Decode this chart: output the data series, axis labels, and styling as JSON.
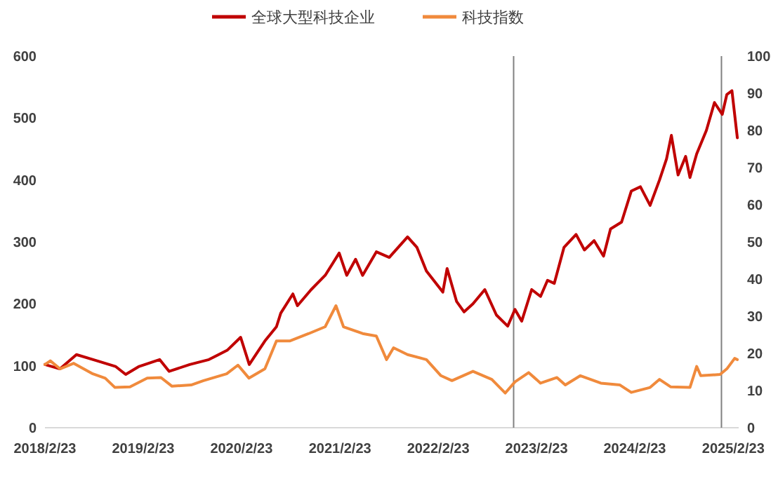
{
  "chart_data": {
    "type": "line",
    "legend": "top",
    "grid": false,
    "marker": "none",
    "line_style": "solid",
    "xlim": [
      "2018-02-23",
      "2025-03-15"
    ],
    "xticks": [
      {
        "value": "2018-02-23",
        "label": "2018/2/23"
      },
      {
        "value": "2019-02-23",
        "label": "2019/2/23"
      },
      {
        "value": "2020-02-23",
        "label": "2020/2/23"
      },
      {
        "value": "2021-02-23",
        "label": "2021/2/23"
      },
      {
        "value": "2022-02-23",
        "label": "2022/2/23"
      },
      {
        "value": "2023-02-23",
        "label": "2023/2/23"
      },
      {
        "value": "2024-02-23",
        "label": "2024/2/23"
      },
      {
        "value": "2025-02-23",
        "label": "2025/2/23"
      }
    ],
    "ylim": [
      0,
      600
    ],
    "yticks": [
      0,
      100,
      200,
      300,
      400,
      500,
      600
    ],
    "y2lim": [
      0,
      100
    ],
    "y2ticks": [
      0,
      10,
      20,
      30,
      40,
      50,
      60,
      70,
      80,
      90,
      100
    ],
    "ref_lines": [
      {
        "axis": "x",
        "value": "2022-11-30",
        "color": "#808080"
      },
      {
        "axis": "x",
        "value": "2025-01-10",
        "color": "#808080"
      }
    ],
    "series": [
      {
        "name": "全球大型科技企业",
        "color": "#c00000",
        "x": [
          "2018-02-23",
          "2018-04-20",
          "2018-06-20",
          "2018-09-05",
          "2018-11-12",
          "2018-12-20",
          "2019-02-08",
          "2019-04-25",
          "2019-05-30",
          "2019-08-15",
          "2019-10-25",
          "2020-01-01",
          "2020-02-20",
          "2020-03-23",
          "2020-05-20",
          "2020-07-02",
          "2020-07-18",
          "2020-09-01",
          "2020-09-18",
          "2020-11-08",
          "2020-12-30",
          "2021-02-20",
          "2021-03-20",
          "2021-04-22",
          "2021-05-18",
          "2021-07-08",
          "2021-08-25",
          "2021-11-01",
          "2021-12-06",
          "2022-01-10",
          "2022-03-12",
          "2022-03-28",
          "2022-05-02",
          "2022-05-30",
          "2022-07-02",
          "2022-08-15",
          "2022-09-27",
          "2022-11-08",
          "2022-12-05",
          "2022-12-30",
          "2023-02-05",
          "2023-03-10",
          "2023-04-05",
          "2023-04-30",
          "2023-06-05",
          "2023-07-20",
          "2023-08-20",
          "2023-09-25",
          "2023-10-30",
          "2023-11-25",
          "2024-01-05",
          "2024-02-10",
          "2024-03-15",
          "2024-04-20",
          "2024-05-25",
          "2024-06-20",
          "2024-07-08",
          "2024-08-02",
          "2024-08-30",
          "2024-09-15",
          "2024-10-10",
          "2024-11-15",
          "2024-12-15",
          "2025-01-13",
          "2025-01-30",
          "2025-02-18",
          "2025-03-10"
        ],
        "values": [
          102,
          95,
          118,
          108,
          99,
          86,
          99,
          110,
          91,
          102,
          110,
          125,
          146,
          102,
          140,
          163,
          185,
          216,
          197,
          223,
          246,
          282,
          246,
          272,
          246,
          284,
          275,
          308,
          291,
          253,
          219,
          257,
          204,
          187,
          200,
          223,
          182,
          164,
          191,
          172,
          223,
          212,
          238,
          233,
          291,
          312,
          287,
          302,
          277,
          321,
          332,
          382,
          389,
          359,
          400,
          434,
          472,
          408,
          438,
          404,
          442,
          480,
          525,
          506,
          538,
          544,
          468
        ]
      },
      {
        "name": "科技指数",
        "color": "#f08a3c",
        "x": [
          "2018-02-23",
          "2018-03-15",
          "2018-04-20",
          "2018-06-10",
          "2018-08-20",
          "2018-10-05",
          "2018-11-10",
          "2019-01-05",
          "2019-03-10",
          "2019-04-30",
          "2019-06-10",
          "2019-08-20",
          "2019-10-05",
          "2019-12-30",
          "2020-02-10",
          "2020-03-22",
          "2020-05-20",
          "2020-07-02",
          "2020-08-20",
          "2020-10-30",
          "2020-12-30",
          "2021-02-08",
          "2021-03-08",
          "2021-05-18",
          "2021-07-08",
          "2021-08-15",
          "2021-09-10",
          "2021-11-01",
          "2022-01-10",
          "2022-03-05",
          "2022-04-15",
          "2022-07-02",
          "2022-09-10",
          "2022-10-30",
          "2022-12-05",
          "2023-01-25",
          "2023-03-10",
          "2023-05-10",
          "2023-06-10",
          "2023-08-05",
          "2023-10-20",
          "2023-12-30",
          "2024-02-10",
          "2024-04-20",
          "2024-05-25",
          "2024-07-05",
          "2024-09-15",
          "2024-10-10",
          "2024-10-25",
          "2025-01-05",
          "2025-01-30",
          "2025-02-28",
          "2025-03-10"
        ],
        "values": [
          102,
          108,
          95,
          104,
          87,
          80,
          65,
          66,
          80,
          81,
          67,
          69,
          76,
          87,
          101,
          80,
          95,
          140,
          140,
          152,
          163,
          197,
          163,
          152,
          148,
          110,
          129,
          118,
          110,
          84,
          76,
          91,
          78,
          56,
          74,
          89,
          72,
          81,
          69,
          84,
          72,
          69,
          57,
          65,
          78,
          66,
          65,
          99,
          84,
          86,
          95,
          112,
          110
        ]
      }
    ]
  }
}
